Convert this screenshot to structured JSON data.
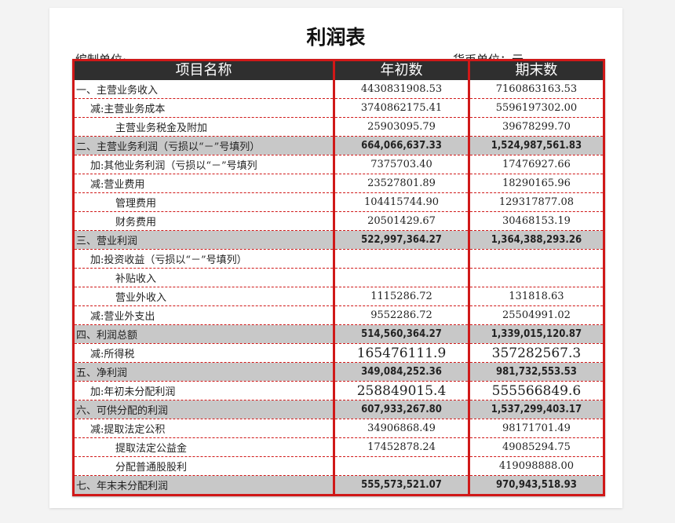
{
  "title": "利润表",
  "prepared_by_label": "编制单位:",
  "currency_label": "货币单位：元",
  "columns": [
    "项目名称",
    "年初数",
    "期末数"
  ],
  "rows": [
    {
      "name": "一、主营业务收入",
      "level": 0,
      "begin": "4430831908.53",
      "end": "7160863163.53"
    },
    {
      "name": "减:主营业务成本",
      "level": 1,
      "begin": "3740862175.41",
      "end": "5596197302.00"
    },
    {
      "name": "主营业务税金及附加",
      "level": 2,
      "begin": "25903095.79",
      "end": "39678299.70"
    },
    {
      "name": "二、主营业务利润（亏损以“－”号填列）",
      "level": 0,
      "summary": true,
      "begin": "664,066,637.33",
      "end": "1,524,987,561.83"
    },
    {
      "name": "加:其他业务利润（亏损以“－”号填列",
      "level": 1,
      "begin": "7375703.40",
      "end": "17476927.66"
    },
    {
      "name": "减:营业费用",
      "level": 1,
      "begin": "23527801.89",
      "end": "18290165.96"
    },
    {
      "name": "管理费用",
      "level": 2,
      "begin": "104415744.90",
      "end": "129317877.08"
    },
    {
      "name": "财务费用",
      "level": 2,
      "begin": "20501429.67",
      "end": "30468153.19"
    },
    {
      "name": "三、营业利润",
      "level": 0,
      "summary": true,
      "begin": "522,997,364.27",
      "end": "1,364,388,293.26"
    },
    {
      "name": "加:投资收益（亏损以“－”号填列）",
      "level": 1,
      "begin": "",
      "end": ""
    },
    {
      "name": "补贴收入",
      "level": 2,
      "begin": "",
      "end": ""
    },
    {
      "name": "营业外收入",
      "level": 2,
      "begin": "1115286.72",
      "end": "131818.63"
    },
    {
      "name": "减:营业外支出",
      "level": 1,
      "begin": "9552286.72",
      "end": "25504991.02"
    },
    {
      "name": "四、利润总额",
      "level": 0,
      "summary": true,
      "begin": "514,560,364.27",
      "end": "1,339,015,120.87"
    },
    {
      "name": "减:所得税",
      "level": 1,
      "big": true,
      "begin": "165476111.9",
      "end": "357282567.3"
    },
    {
      "name": "五、净利润",
      "level": 0,
      "summary": true,
      "begin": "349,084,252.36",
      "end": "981,732,553.53"
    },
    {
      "name": "加:年初未分配利润",
      "level": 1,
      "big": true,
      "begin": "258849015.4",
      "end": "555566849.6"
    },
    {
      "name": "六、可供分配的利润",
      "level": 0,
      "summary": true,
      "begin": "607,933,267.80",
      "end": "1,537,299,403.17"
    },
    {
      "name": "减:提取法定公积",
      "level": 1,
      "begin": "34906868.49",
      "end": "98171701.49"
    },
    {
      "name": "提取法定公益金",
      "level": 2,
      "begin": "17452878.24",
      "end": "49085294.75"
    },
    {
      "name": "分配普通股股利",
      "level": 2,
      "begin": "",
      "end": "419098888.00"
    },
    {
      "name": "七、年末未分配利润",
      "level": 0,
      "summary": true,
      "begin": "555,573,521.07",
      "end": "970,943,518.93"
    }
  ]
}
